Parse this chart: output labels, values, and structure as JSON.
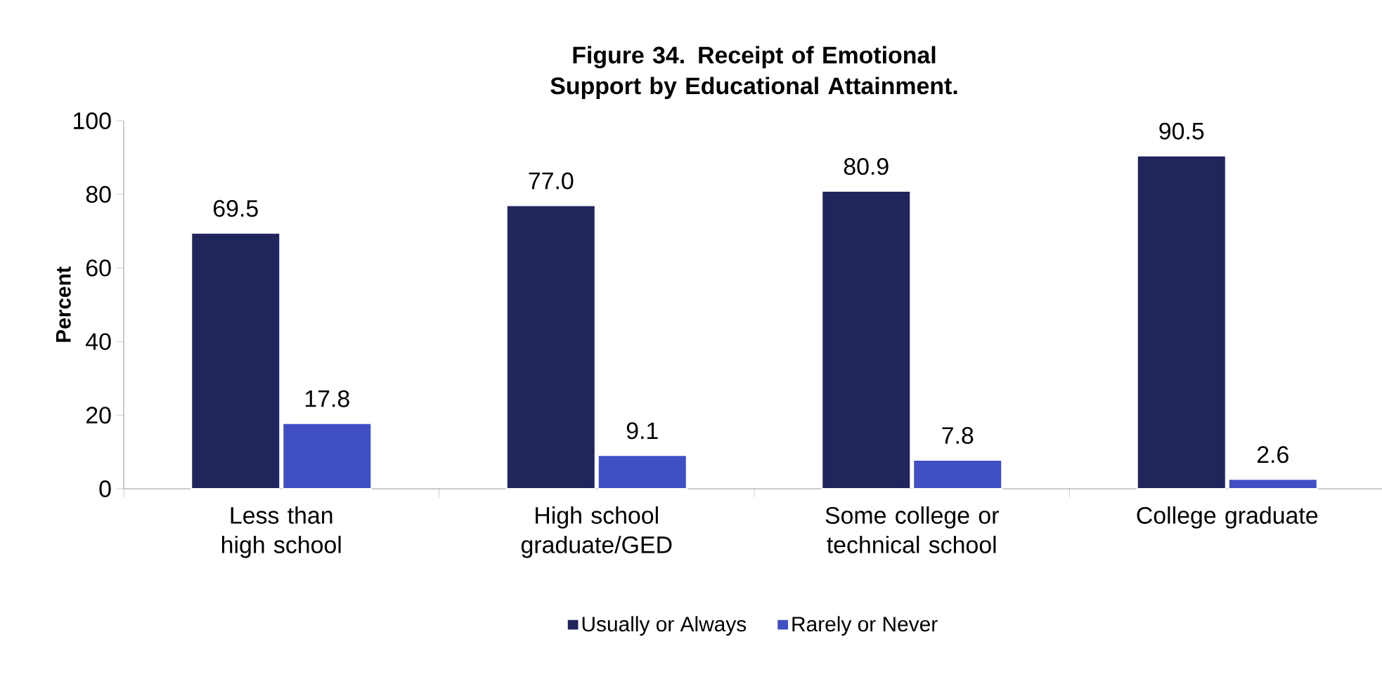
{
  "chart_data": {
    "type": "bar",
    "title": "Figure 34. Receipt of Emotional Support by Educational Attainment.",
    "ylabel": "Percent",
    "categories": [
      "Less than high school",
      "High school graduate/GED",
      "Some college or technical school",
      "College graduate"
    ],
    "series": [
      {
        "name": "Usually or Always",
        "color": "#20265c",
        "values": [
          69.5,
          77.0,
          80.9,
          90.5
        ],
        "value_labels": [
          "69.5",
          "77.0",
          "80.9",
          "90.5"
        ]
      },
      {
        "name": "Rarely or Never",
        "color": "#4050c4",
        "values": [
          17.8,
          9.1,
          7.8,
          2.6
        ],
        "value_labels": [
          "17.8",
          "9.1",
          "7.8",
          "2.6"
        ]
      }
    ],
    "ylim": [
      0,
      100
    ],
    "yticks": [
      0,
      20,
      40,
      60,
      80,
      100
    ],
    "grid": false,
    "legend": "bottom"
  }
}
